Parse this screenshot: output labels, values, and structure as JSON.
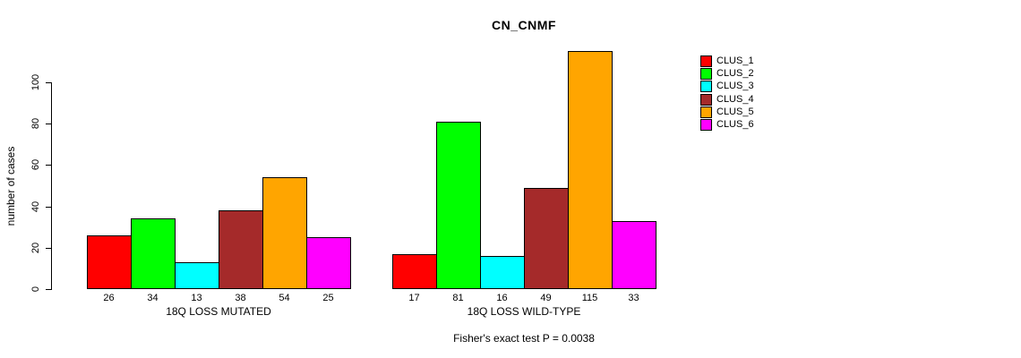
{
  "chart_data": {
    "type": "bar",
    "title": "CN_CNMF",
    "ylabel": "number of cases",
    "xlabel": "",
    "ylim": [
      0,
      100
    ],
    "yticks": [
      0,
      20,
      40,
      60,
      80,
      100
    ],
    "grid": false,
    "legend_position": "right",
    "bar_value_labels": true,
    "categories": [
      "18Q LOSS MUTATED",
      "18Q LOSS WILD-TYPE"
    ],
    "series": [
      {
        "name": "CLUS_1",
        "color": "#FF0000",
        "values": [
          26,
          17
        ]
      },
      {
        "name": "CLUS_2",
        "color": "#00FF00",
        "values": [
          34,
          81
        ]
      },
      {
        "name": "CLUS_3",
        "color": "#00FFFF",
        "values": [
          13,
          16
        ]
      },
      {
        "name": "CLUS_4",
        "color": "#A52A2A",
        "values": [
          38,
          49
        ]
      },
      {
        "name": "CLUS_5",
        "color": "#FFA500",
        "values": [
          54,
          115
        ]
      },
      {
        "name": "CLUS_6",
        "color": "#FF00FF",
        "values": [
          25,
          33
        ]
      }
    ],
    "annotation": "Fisher's exact test P = 0.0038"
  }
}
